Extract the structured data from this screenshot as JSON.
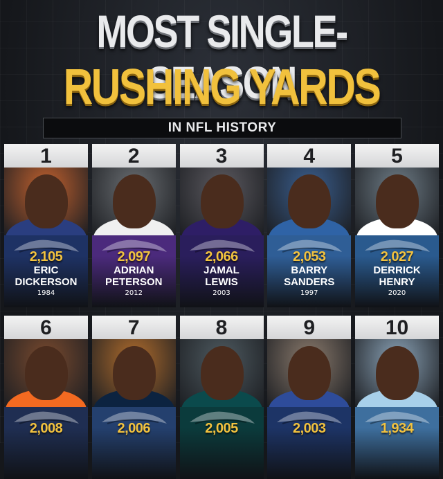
{
  "header": {
    "title_line1": "MOST SINGLE-SEASON",
    "title_line2": "RUSHING YARDS",
    "subtitle": "IN NFL HISTORY"
  },
  "players": [
    {
      "rank": "1",
      "yards": "2,105",
      "name": "ERIC\nDICKERSON",
      "year": "1984",
      "team_color": "#1e3264",
      "photo_bg": "#c2612e",
      "jersey": "#2a3e80"
    },
    {
      "rank": "2",
      "yards": "2,097",
      "name": "ADRIAN\nPETERSON",
      "year": "2012",
      "team_color": "#4b2a7c",
      "photo_bg": "#6a6e72",
      "jersey": "#f0f0f0"
    },
    {
      "rank": "3",
      "yards": "2,066",
      "name": "JAMAL\nLEWIS",
      "year": "2003",
      "team_color": "#2a1e5c",
      "photo_bg": "#5c5a60",
      "jersey": "#2e1e66"
    },
    {
      "rank": "4",
      "yards": "2,053",
      "name": "BARRY\nSANDERS",
      "year": "1997",
      "team_color": "#2f5e96",
      "photo_bg": "#3a5e8e",
      "jersey": "#2f63a6"
    },
    {
      "rank": "5",
      "yards": "2,027",
      "name": "DERRICK\nHENRY",
      "year": "2020",
      "team_color": "#2a5a8e",
      "photo_bg": "#6e7c86",
      "jersey": "#ffffff"
    },
    {
      "rank": "6",
      "yards": "2,008",
      "name": "",
      "year": "",
      "team_color": "#1f2e52",
      "photo_bg": "#7a4a2e",
      "jersey": "#f36a21"
    },
    {
      "rank": "7",
      "yards": "2,006",
      "name": "",
      "year": "",
      "team_color": "#24406e",
      "photo_bg": "#b06c2c",
      "jersey": "#0c2340"
    },
    {
      "rank": "8",
      "yards": "2,005",
      "name": "",
      "year": "",
      "team_color": "#0b3b3c",
      "photo_bg": "#4e5a60",
      "jersey": "#0b4a4c"
    },
    {
      "rank": "9",
      "yards": "2,003",
      "name": "",
      "year": "",
      "team_color": "#1d3466",
      "photo_bg": "#8a7a6c",
      "jersey": "#2e4c9a"
    },
    {
      "rank": "10",
      "yards": "1,934",
      "name": "",
      "year": "",
      "team_color": "#3e6f9e",
      "photo_bg": "#8aa2b6",
      "jersey": "#a8d0ea"
    }
  ]
}
